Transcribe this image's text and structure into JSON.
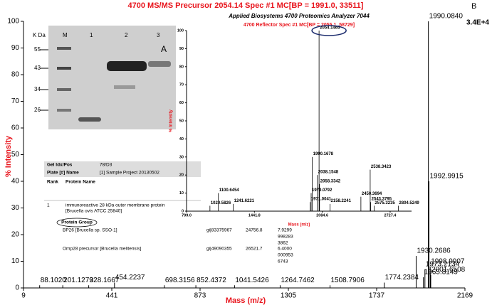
{
  "chart_data": [
    {
      "type": "stem",
      "title": "4700 MS/MS Precursor 2054.14 Spec #1 MC[BP = 1991.0, 33511]",
      "x_label": "Mass (m/z)",
      "y_label": "% Intensity",
      "scale_note": "3.4E+4",
      "panel": "B",
      "xlim": [
        9,
        2169
      ],
      "ylim": [
        0,
        100
      ],
      "xticks": [
        9,
        441,
        873,
        1305,
        1737,
        2169
      ],
      "yticks": [
        0,
        10,
        20,
        30,
        40,
        50,
        60,
        70,
        80,
        90,
        100
      ],
      "color": "#000000",
      "x": [
        88.102,
        201.1279,
        328.1667,
        454.2237,
        698.3156,
        852.4372,
        1041.5426,
        1264.7462,
        1508.7906,
        1774.2384,
        1930.2686,
        1965.8149,
        1973.2134,
        1990.084,
        1992.9915,
        1998.9907,
        2001.6508
      ],
      "x_labels": [
        "88.1020",
        "201.1279",
        "328.1667",
        "454.2237",
        "698.3156",
        "852.4372",
        "1041.5426",
        "1264.7462",
        "1508.7906",
        "1774.2384",
        "1930.2686",
        "1965.8149",
        "1973.2134",
        "1990.0840",
        "1992.9915",
        "1998.9907",
        "2001.6508"
      ],
      "values": [
        1,
        1,
        1,
        2,
        1,
        1,
        1,
        1,
        1,
        2,
        12,
        4,
        7,
        100,
        40,
        8,
        5
      ]
    },
    {
      "type": "stem",
      "title": "Applied Biosystems 4700 Proteomics Analyzer 7044",
      "subtitle": "4700 Reflector Spec #1 MC[BP = 2055.1, 58729]",
      "x_label": "Mass (m/z)",
      "y_label": "% Intensity",
      "xlim": [
        799,
        2930
      ],
      "ylim": [
        0,
        100
      ],
      "xticks": [
        {
          "value": 799,
          "label": "799.0"
        },
        {
          "value": 1441.8,
          "label": "1441.8"
        },
        {
          "value": 2084.6,
          "label": "2084.6"
        },
        {
          "value": 2727.4,
          "label": "2727.4"
        }
      ],
      "yticks": [
        0,
        10,
        20,
        30,
        40,
        50,
        60,
        70,
        80,
        90,
        100
      ],
      "color": "#000000",
      "x": [
        1020.5826,
        1100.6454,
        1241.6221,
        1971.0041,
        1979.0792,
        1990.1678,
        2038.1548,
        2054.1465,
        2058.3342,
        2158.2241,
        2450.3694,
        2538.3423,
        2543.3795,
        2575.3235,
        2804.5249
      ],
      "x_labels": [
        "1020.5826",
        "1100.6454",
        "1241.6221",
        "1971.0041",
        "1979.0792",
        "1990.1678",
        "2038.1548",
        "2054.1465",
        "2058.3342",
        "2158.2241",
        "2450.3694",
        "2538.3423",
        "2543.3795",
        "2575.3235",
        "2804.5249"
      ],
      "values": [
        3,
        10,
        4,
        5,
        10,
        30,
        20,
        100,
        15,
        4,
        8,
        23,
        5,
        3,
        3
      ]
    }
  ],
  "gel": {
    "unit": "K Da",
    "lanes": [
      "M",
      "1",
      "2",
      "3"
    ],
    "markers": [
      "55",
      "43",
      "34",
      "26"
    ],
    "panel": "A"
  },
  "table": {
    "gel_idx_label": "Gel Idx/Pos",
    "gel_idx": "78/D3",
    "plate_label": "Plate [#] Name",
    "plate": "[1] Sample Project 20130502",
    "rank_header": "Rank",
    "protein_header": "Protein Name",
    "rank": "1",
    "protein_lines": [
      "immunoreactive 28 kDa outer membrane protein",
      "[Brucella ovis ATCC 25840]"
    ],
    "group_label": "Protein Group",
    "rows": [
      [
        "BP26 [Brucella sp. SSO-1]",
        "gi|83375967",
        "24756.8",
        [
          "7.9299",
          "998283",
          "3862"
        ]
      ],
      [
        "Omp28 precursor [Brucella melitensis]",
        "gi|49090355",
        "26521.7",
        [
          "6.4000",
          "000953",
          "6743"
        ]
      ]
    ]
  }
}
